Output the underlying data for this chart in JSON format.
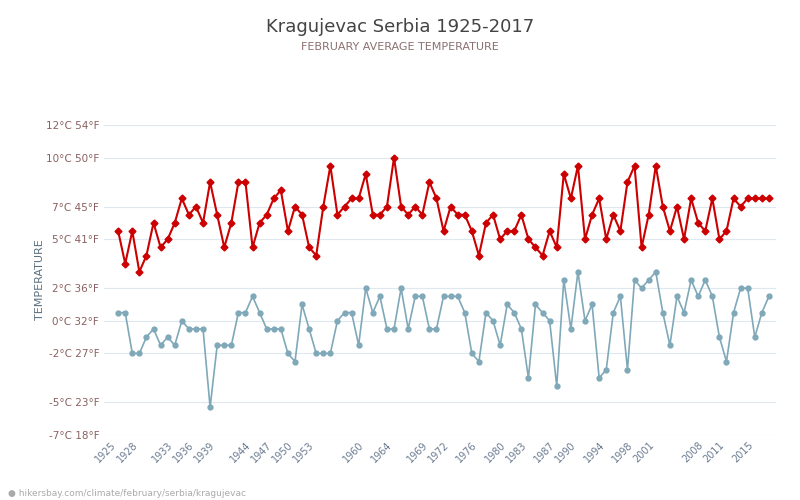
{
  "title": "Kragujevac Serbia 1925-2017",
  "subtitle": "FEBRUARY AVERAGE TEMPERATURE",
  "ylabel": "TEMPERATURE",
  "watermark": "hikersbay.com/climate/february/serbia/kragujevac",
  "ylim_c": [
    -7,
    12
  ],
  "yticks_c": [
    -7,
    -5,
    -2,
    0,
    2,
    5,
    7,
    10,
    12
  ],
  "yticks_f": [
    18,
    23,
    27,
    32,
    36,
    41,
    45,
    50,
    54
  ],
  "xticks": [
    1925,
    1928,
    1933,
    1936,
    1939,
    1944,
    1947,
    1950,
    1953,
    1960,
    1964,
    1969,
    1972,
    1976,
    1980,
    1983,
    1987,
    1990,
    1994,
    1998,
    2001,
    2008,
    2011,
    2015
  ],
  "day_color": "#cc0000",
  "night_color": "#7fa8b8",
  "bg_color": "#ffffff",
  "grid_color": "#dde8f0",
  "title_color": "#444444",
  "subtitle_color": "#8a7070",
  "ylabel_color": "#5a7080",
  "ytick_color": "#8a6060",
  "xtick_color": "#6a7a90",
  "years": [
    1925,
    1926,
    1927,
    1928,
    1929,
    1930,
    1931,
    1932,
    1933,
    1934,
    1935,
    1936,
    1937,
    1938,
    1939,
    1940,
    1941,
    1942,
    1943,
    1944,
    1945,
    1946,
    1947,
    1948,
    1949,
    1950,
    1951,
    1952,
    1953,
    1954,
    1955,
    1956,
    1957,
    1958,
    1959,
    1960,
    1961,
    1962,
    1963,
    1964,
    1965,
    1966,
    1967,
    1968,
    1969,
    1970,
    1971,
    1972,
    1973,
    1974,
    1975,
    1976,
    1977,
    1978,
    1979,
    1980,
    1981,
    1982,
    1983,
    1984,
    1985,
    1986,
    1987,
    1988,
    1989,
    1990,
    1991,
    1992,
    1993,
    1994,
    1995,
    1996,
    1997,
    1998,
    1999,
    2000,
    2001,
    2002,
    2003,
    2004,
    2005,
    2006,
    2007,
    2008,
    2009,
    2010,
    2011,
    2012,
    2013,
    2014,
    2015,
    2016,
    2017
  ],
  "day_temps": [
    5.5,
    3.5,
    5.5,
    3.0,
    4.0,
    6.0,
    4.5,
    5.0,
    6.0,
    7.5,
    6.5,
    7.0,
    6.0,
    8.5,
    6.5,
    4.5,
    6.0,
    8.5,
    8.5,
    4.5,
    6.0,
    6.5,
    7.5,
    8.0,
    5.5,
    7.0,
    6.5,
    4.5,
    4.0,
    7.0,
    9.5,
    6.5,
    7.0,
    7.5,
    7.5,
    9.0,
    6.5,
    6.5,
    7.0,
    10.0,
    7.0,
    6.5,
    7.0,
    6.5,
    8.5,
    7.5,
    5.5,
    7.0,
    6.5,
    6.5,
    5.5,
    4.0,
    6.0,
    6.5,
    5.0,
    5.5,
    5.5,
    6.5,
    5.0,
    4.5,
    4.0,
    5.5,
    4.5,
    9.0,
    7.5,
    9.5,
    5.0,
    6.5,
    7.5,
    5.0,
    6.5,
    5.5,
    8.5,
    9.5,
    4.5,
    6.5,
    9.5,
    7.0,
    5.5,
    7.0,
    5.0,
    7.5,
    6.0,
    5.5,
    7.5,
    5.0,
    5.5,
    7.5,
    7.0,
    7.5,
    7.5,
    7.5,
    7.5
  ],
  "night_temps": [
    0.5,
    0.5,
    -2.0,
    -2.0,
    -1.0,
    -0.5,
    -1.5,
    -1.0,
    -1.5,
    0.0,
    -0.5,
    -0.5,
    -0.5,
    -5.3,
    -1.5,
    -1.5,
    -1.5,
    0.5,
    0.5,
    1.5,
    0.5,
    -0.5,
    -0.5,
    -0.5,
    -2.0,
    -2.5,
    1.0,
    -0.5,
    -2.0,
    -2.0,
    -2.0,
    0.0,
    0.5,
    0.5,
    -1.5,
    2.0,
    0.5,
    1.5,
    -0.5,
    -0.5,
    2.0,
    -0.5,
    1.5,
    1.5,
    -0.5,
    -0.5,
    1.5,
    1.5,
    1.5,
    0.5,
    -2.0,
    -2.5,
    0.5,
    0.0,
    -1.5,
    1.0,
    0.5,
    -0.5,
    -3.5,
    1.0,
    0.5,
    0.0,
    -4.0,
    2.5,
    -0.5,
    3.0,
    0.0,
    1.0,
    -3.5,
    -3.0,
    0.5,
    1.5,
    -3.0,
    2.5,
    2.0,
    2.5,
    3.0,
    0.5,
    -1.5,
    1.5,
    0.5,
    2.5,
    1.5,
    2.5,
    1.5,
    -1.0,
    -2.5,
    0.5,
    2.0,
    2.0,
    -1.0,
    0.5,
    1.5
  ]
}
